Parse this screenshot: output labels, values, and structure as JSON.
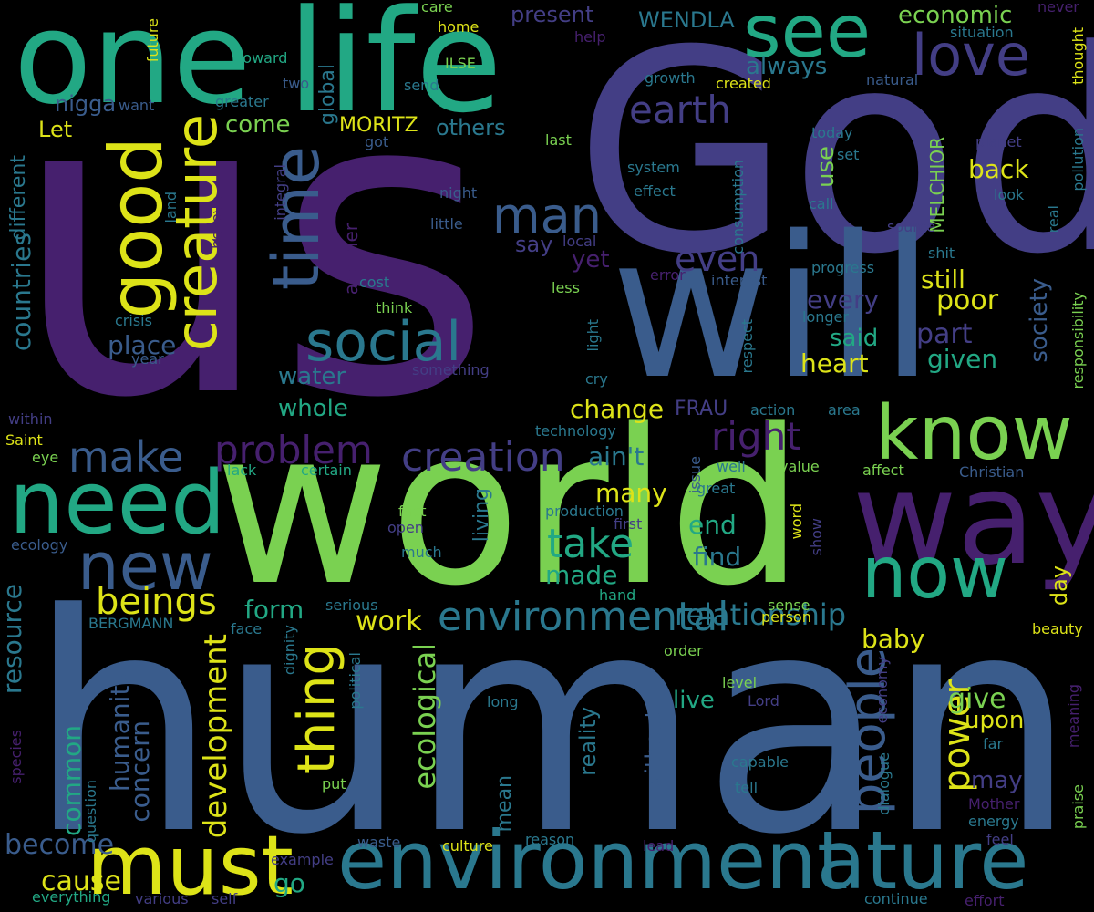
{
  "palette": {
    "background": "#000000",
    "purple": "#46206e",
    "indigo": "#433e85",
    "blue": "#3a5c8c",
    "teal": "#2a788e",
    "green": "#22a884",
    "lightgreen": "#7ad151",
    "yellow": "#dde318"
  },
  "words": [
    {
      "text": "us"
    },
    {
      "text": "God"
    },
    {
      "text": "human"
    },
    {
      "text": "world"
    },
    {
      "text": "will"
    },
    {
      "text": "one"
    },
    {
      "text": "life"
    },
    {
      "text": "way"
    },
    {
      "text": "environment"
    },
    {
      "text": "nature"
    },
    {
      "text": "need"
    },
    {
      "text": "must"
    },
    {
      "text": "know"
    },
    {
      "text": "now"
    },
    {
      "text": "good"
    },
    {
      "text": "time"
    },
    {
      "text": "creature"
    },
    {
      "text": "see"
    },
    {
      "text": "love"
    },
    {
      "text": "new"
    },
    {
      "text": "social"
    },
    {
      "text": "people"
    },
    {
      "text": "thing"
    },
    {
      "text": "man"
    },
    {
      "text": "environmental"
    },
    {
      "text": "creation"
    },
    {
      "text": "problem"
    },
    {
      "text": "make"
    },
    {
      "text": "earth"
    },
    {
      "text": "right"
    },
    {
      "text": "even"
    },
    {
      "text": "beings"
    },
    {
      "text": "take"
    },
    {
      "text": "power"
    },
    {
      "text": "relationship"
    },
    {
      "text": "development"
    },
    {
      "text": "ecological"
    },
    {
      "text": "countries"
    },
    {
      "text": "humanity"
    },
    {
      "text": "concern"
    },
    {
      "text": "common"
    },
    {
      "text": "resource"
    },
    {
      "text": "cause"
    },
    {
      "text": "become"
    },
    {
      "text": "go"
    },
    {
      "text": "work"
    },
    {
      "text": "form"
    },
    {
      "text": "made"
    },
    {
      "text": "end"
    },
    {
      "text": "find"
    },
    {
      "text": "many"
    },
    {
      "text": "change"
    },
    {
      "text": "ain't"
    },
    {
      "text": "FRAU"
    },
    {
      "text": "place"
    },
    {
      "text": "water"
    },
    {
      "text": "whole"
    },
    {
      "text": "heart"
    },
    {
      "text": "given"
    },
    {
      "text": "said"
    },
    {
      "text": "part"
    },
    {
      "text": "poor"
    },
    {
      "text": "still"
    },
    {
      "text": "every"
    },
    {
      "text": "back"
    },
    {
      "text": "use"
    },
    {
      "text": "society"
    },
    {
      "text": "MELCHIOR"
    },
    {
      "text": "baby"
    },
    {
      "text": "give"
    },
    {
      "text": "upon"
    },
    {
      "text": "may"
    },
    {
      "text": "day"
    },
    {
      "text": "live"
    },
    {
      "text": "without"
    },
    {
      "text": "reality"
    },
    {
      "text": "mean"
    },
    {
      "text": "living"
    },
    {
      "text": "yet"
    },
    {
      "text": "say"
    },
    {
      "text": "another"
    },
    {
      "text": "global"
    },
    {
      "text": "MORITZ"
    },
    {
      "text": "others"
    },
    {
      "text": "come"
    },
    {
      "text": "Let"
    },
    {
      "text": "nigga"
    },
    {
      "text": "different"
    },
    {
      "text": "present"
    },
    {
      "text": "WENDLA"
    },
    {
      "text": "economic"
    },
    {
      "text": "always"
    },
    {
      "text": "care"
    },
    {
      "text": "home"
    },
    {
      "text": "never"
    },
    {
      "text": "situation"
    },
    {
      "text": "thought"
    },
    {
      "text": "help"
    },
    {
      "text": "future"
    },
    {
      "text": "toward"
    },
    {
      "text": "ILSE"
    },
    {
      "text": "two"
    },
    {
      "text": "send"
    },
    {
      "text": "growth"
    },
    {
      "text": "created"
    },
    {
      "text": "natural"
    },
    {
      "text": "want"
    },
    {
      "text": "greater"
    },
    {
      "text": "got"
    },
    {
      "text": "last"
    },
    {
      "text": "today"
    },
    {
      "text": "planet"
    },
    {
      "text": "set"
    },
    {
      "text": "pollution"
    },
    {
      "text": "system"
    },
    {
      "text": "effect"
    },
    {
      "text": "consumption"
    },
    {
      "text": "call"
    },
    {
      "text": "look"
    },
    {
      "text": "real"
    },
    {
      "text": "land"
    },
    {
      "text": "believe"
    },
    {
      "text": "integral"
    },
    {
      "text": "night"
    },
    {
      "text": "little"
    },
    {
      "text": "source"
    },
    {
      "text": "local"
    },
    {
      "text": "shit"
    },
    {
      "text": "progress"
    },
    {
      "text": "error"
    },
    {
      "text": "interest"
    },
    {
      "text": "cost"
    },
    {
      "text": "less"
    },
    {
      "text": "think"
    },
    {
      "text": "longer"
    },
    {
      "text": "crisis"
    },
    {
      "text": "light"
    },
    {
      "text": "respect"
    },
    {
      "text": "responsibility"
    },
    {
      "text": "year"
    },
    {
      "text": "something"
    },
    {
      "text": "cry"
    },
    {
      "text": "action"
    },
    {
      "text": "area"
    },
    {
      "text": "within"
    },
    {
      "text": "technology"
    },
    {
      "text": "Saint"
    },
    {
      "text": "eye"
    },
    {
      "text": "issue"
    },
    {
      "text": "lack"
    },
    {
      "text": "certain"
    },
    {
      "text": "well"
    },
    {
      "text": "value"
    },
    {
      "text": "affect"
    },
    {
      "text": "Christian"
    },
    {
      "text": "great"
    },
    {
      "text": "fact"
    },
    {
      "text": "production"
    },
    {
      "text": "word"
    },
    {
      "text": "open"
    },
    {
      "text": "first"
    },
    {
      "text": "show"
    },
    {
      "text": "ecology"
    },
    {
      "text": "much"
    },
    {
      "text": "serious"
    },
    {
      "text": "hand"
    },
    {
      "text": "sense"
    },
    {
      "text": "person"
    },
    {
      "text": "BERGMANN"
    },
    {
      "text": "face"
    },
    {
      "text": "beauty"
    },
    {
      "text": "dignity"
    },
    {
      "text": "order"
    },
    {
      "text": "political"
    },
    {
      "text": "level"
    },
    {
      "text": "economy"
    },
    {
      "text": "Lord"
    },
    {
      "text": "long"
    },
    {
      "text": "species"
    },
    {
      "text": "question"
    },
    {
      "text": "capable"
    },
    {
      "text": "dialogue"
    },
    {
      "text": "far"
    },
    {
      "text": "meaning"
    },
    {
      "text": "put"
    },
    {
      "text": "tell"
    },
    {
      "text": "Mother"
    },
    {
      "text": "energy"
    },
    {
      "text": "praise"
    },
    {
      "text": "feel"
    },
    {
      "text": "waste"
    },
    {
      "text": "culture"
    },
    {
      "text": "reason"
    },
    {
      "text": "lead"
    },
    {
      "text": "example"
    },
    {
      "text": "everything"
    },
    {
      "text": "various"
    },
    {
      "text": "self"
    },
    {
      "text": "continue"
    },
    {
      "text": "effort"
    }
  ]
}
